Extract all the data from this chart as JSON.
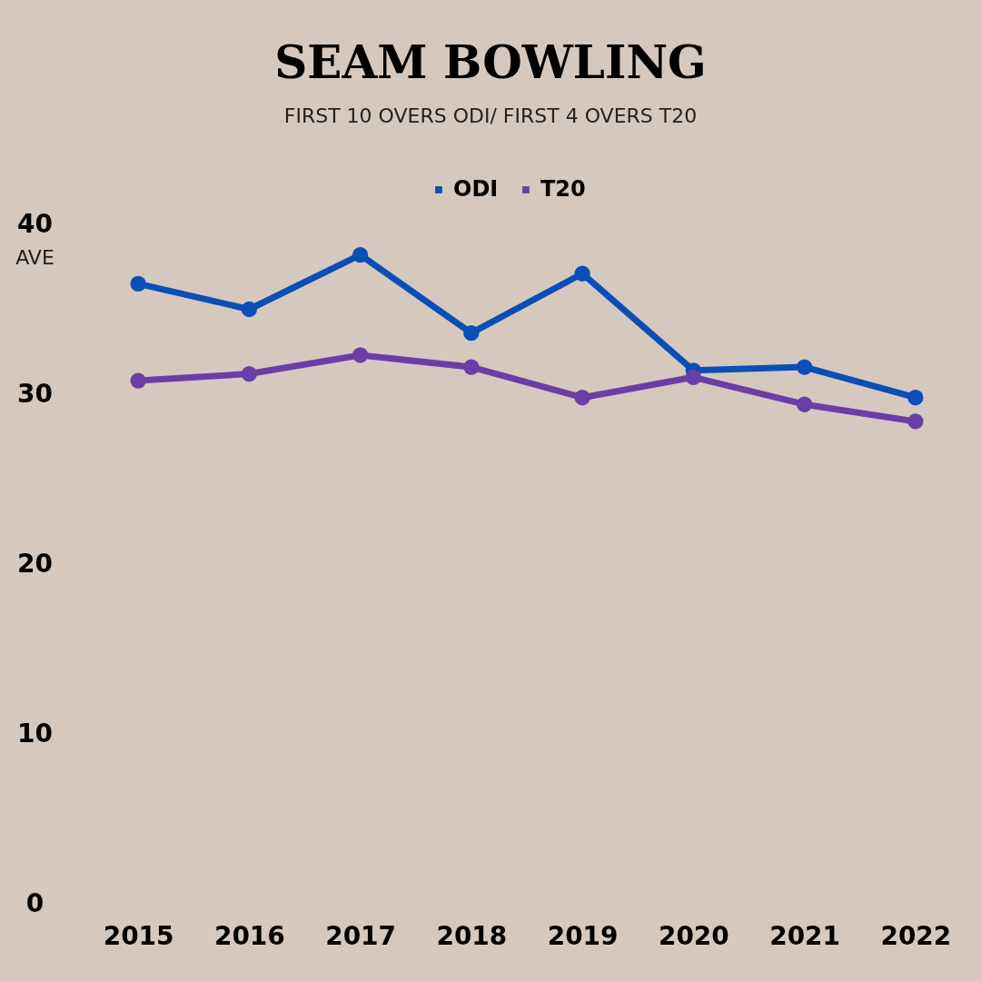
{
  "chart_data": {
    "type": "line",
    "title": "SEAM BOWLING",
    "subtitle": "FIRST 10 OVERS ODI/ FIRST 4 OVERS T20",
    "ylabel": "AVE",
    "categories": [
      "2015",
      "2016",
      "2017",
      "2018",
      "2019",
      "2020",
      "2021",
      "2022"
    ],
    "series": [
      {
        "name": "ODI",
        "color": "#0a4fb5",
        "values": [
          36.5,
          35.0,
          38.2,
          33.6,
          37.1,
          31.4,
          31.6,
          29.8
        ]
      },
      {
        "name": "T20",
        "color": "#6a3ea6",
        "values": [
          30.8,
          31.2,
          32.3,
          31.6,
          29.8,
          31.0,
          29.4,
          28.4
        ]
      }
    ],
    "ylim": [
      0,
      40
    ],
    "yticks": [
      0,
      10,
      20,
      30,
      40
    ],
    "grid": false,
    "legend": "top",
    "marker": "circle",
    "line_style": "solid"
  }
}
